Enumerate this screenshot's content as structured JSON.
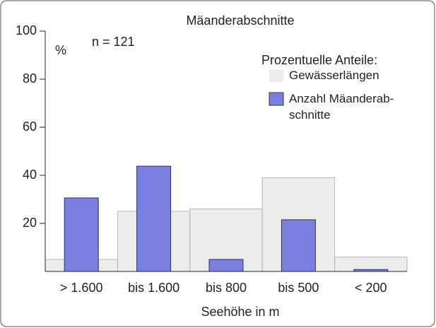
{
  "chart_data": {
    "type": "bar",
    "title": "Mäanderabschnitte",
    "y_label": "%",
    "annotation": "n = 121",
    "x_label": "Seehöhe in m",
    "legend_title": "Prozentuelle Anteile:",
    "categories": [
      "> 1.600",
      "bis 1.600",
      "bis 800",
      "bis 500",
      "< 200"
    ],
    "series": [
      {
        "name": "Gewässerlängen",
        "color": "#ececec",
        "values": [
          5,
          25,
          26,
          39,
          6
        ]
      },
      {
        "name": "Anzahl Mäanderab-\nschnitte",
        "color": "#7b80e0",
        "values": [
          30.6,
          43.8,
          5,
          21.5,
          0.8
        ]
      }
    ],
    "ylim": [
      0,
      100
    ],
    "yticks": [
      20,
      40,
      60,
      80,
      100
    ]
  }
}
